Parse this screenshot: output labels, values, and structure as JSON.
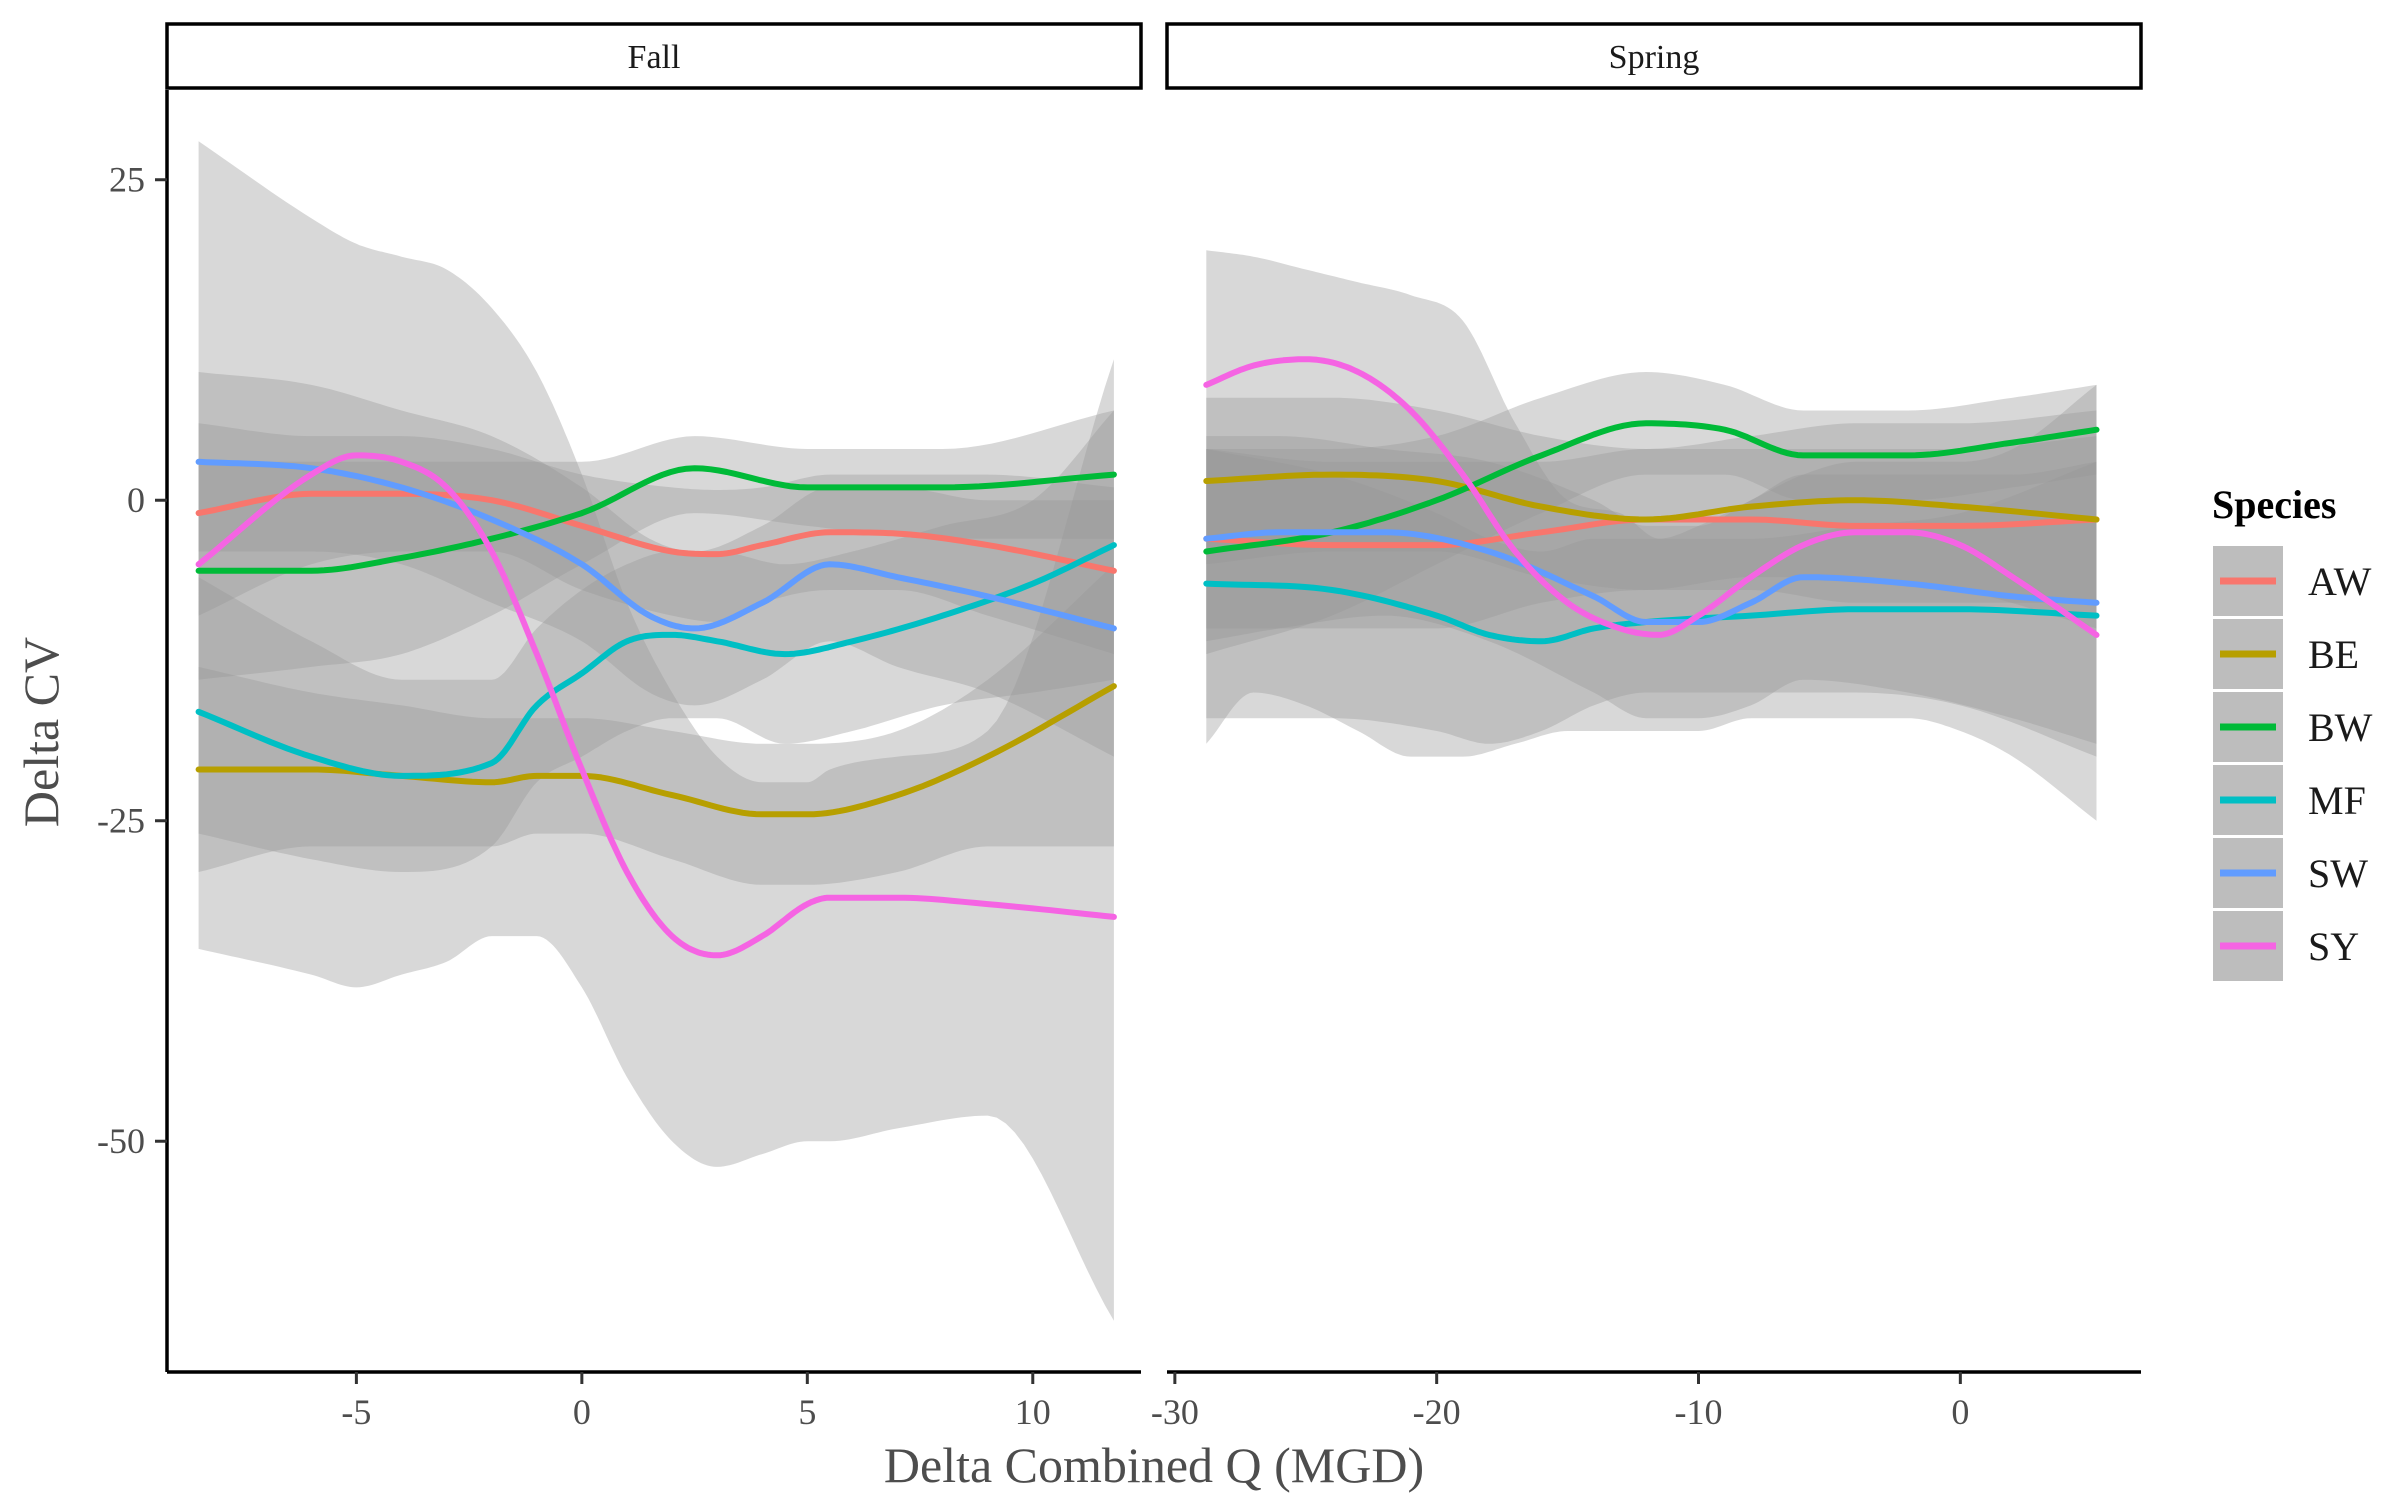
{
  "chart_data": {
    "type": "line",
    "subtype": "smoothed trend lines with confidence ribbons, faceted",
    "xlabel": "Delta Combined Q (MGD)",
    "ylabel": "Delta CV",
    "ylim": [
      -68,
      32
    ],
    "y_ticks": [
      25,
      0,
      -25,
      -50
    ],
    "grid": false,
    "legend": {
      "title": "Species",
      "position": "right",
      "entries": [
        "AW",
        "BE",
        "BW",
        "MF",
        "SW",
        "SY"
      ]
    },
    "colors": {
      "AW": "#F8766D",
      "BE": "#B79F00",
      "BW": "#00BA38",
      "MF": "#00BFC4",
      "SW": "#619CFF",
      "SY": "#F564E3",
      "ribbon": "#999999",
      "legend_key_bg": "#BDBDBD"
    },
    "panels": [
      {
        "label": "Fall",
        "xlim": [
          -9.2,
          12.4
        ],
        "x_ticks": [
          -5,
          0,
          5,
          10
        ],
        "series": [
          {
            "name": "AW",
            "x": [
              -8.5,
              -6,
              -4,
              -2,
              0,
              2,
              3,
              4,
              5.5,
              7,
              9,
              11.8
            ],
            "y": [
              -1,
              0.5,
              0.5,
              0,
              -2,
              -4,
              -4.2,
              -3.5,
              -2.5,
              -2.6,
              -3.5,
              -5.5
            ],
            "ci_upper": [
              6,
              5,
              5,
              4,
              2,
              1,
              0.8,
              1,
              2,
              2,
              2,
              1
            ],
            "ci_lower": [
              -9,
              -5,
              -4,
              -4,
              -7,
              -9,
              -9.5,
              -8,
              -7,
              -7,
              -9,
              -12
            ]
          },
          {
            "name": "BE",
            "x": [
              -8.5,
              -6,
              -4,
              -2,
              -1,
              0,
              2,
              4,
              5,
              7,
              9,
              11.8
            ],
            "y": [
              -21,
              -21,
              -21.5,
              -22,
              -21.5,
              -21.5,
              -23,
              -24.5,
              -24.5,
              -23,
              -20,
              -14.5
            ],
            "ci_upper": [
              -13,
              -15,
              -16,
              -17,
              -17,
              -17,
              -18,
              -19,
              -19,
              -18,
              -14,
              -5
            ],
            "ci_lower": [
              -29,
              -27,
              -27,
              -27,
              -26,
              -26,
              -28,
              -30,
              -30,
              -29,
              -27,
              -27
            ]
          },
          {
            "name": "BW",
            "x": [
              -8.5,
              -6,
              -4,
              -2,
              0,
              2.5,
              5,
              8,
              11.8
            ],
            "y": [
              -5.5,
              -5.5,
              -4.5,
              -3,
              -1,
              2.5,
              1,
              1,
              2
            ],
            "ci_upper": [
              3,
              3,
              3,
              3,
              3,
              5,
              4,
              4,
              7
            ],
            "ci_lower": [
              -14,
              -13,
              -12,
              -9,
              -5,
              -1,
              -2,
              -3,
              -3
            ]
          },
          {
            "name": "MF",
            "x": [
              -8.5,
              -6,
              -4,
              -2,
              -1,
              0,
              1,
              2,
              3,
              4.5,
              6,
              8,
              10,
              11.8
            ],
            "y": [
              -16.5,
              -20,
              -21.5,
              -20.5,
              -16,
              -13.5,
              -11,
              -10.5,
              -11,
              -12,
              -11,
              -9,
              -6.5,
              -3.5
            ],
            "ci_upper": [
              -6,
              -11,
              -14,
              -14,
              -10,
              -7,
              -5,
              -4,
              -4,
              -5,
              -4,
              -2,
              0,
              7
            ],
            "ci_lower": [
              -26,
              -28,
              -29,
              -27,
              -22,
              -20,
              -18,
              -17,
              -17,
              -19,
              -18,
              -16,
              -15,
              -14
            ]
          },
          {
            "name": "SW",
            "x": [
              -8.5,
              -6,
              -4,
              -2,
              0,
              1.5,
              2.5,
              4,
              5.5,
              7,
              9,
              11.8
            ],
            "y": [
              3,
              2.5,
              1,
              -1.5,
              -5,
              -9,
              -10,
              -8,
              -5,
              -6,
              -7.5,
              -10
            ],
            "ci_upper": [
              10,
              9,
              7,
              5,
              1,
              -3,
              -4,
              -2,
              1,
              1,
              0,
              0
            ],
            "ci_lower": [
              -4,
              -4,
              -5,
              -8,
              -11,
              -15,
              -16,
              -14,
              -11,
              -13,
              -15,
              -20
            ]
          },
          {
            "name": "SY",
            "x": [
              -8.5,
              -6,
              -5,
              -4,
              -3,
              -2,
              -1,
              0,
              1,
              2,
              3,
              4,
              5,
              5.5,
              7,
              9,
              11.8
            ],
            "y": [
              -5,
              2,
              3.5,
              3,
              1,
              -4,
              -12,
              -21,
              -29,
              -34,
              -35.5,
              -34,
              -31.5,
              -31,
              -31,
              -31.5,
              -32.5
            ],
            "ci_upper": [
              28,
              22,
              20,
              19,
              18,
              15,
              10,
              2,
              -8,
              -15,
              -20,
              -22,
              -22,
              -21,
              -20,
              -18,
              11
            ],
            "ci_lower": [
              -35,
              -37,
              -38,
              -37,
              -36,
              -34,
              -34,
              -38,
              -45,
              -50,
              -52,
              -51,
              -50,
              -50,
              -49,
              -48,
              -64
            ]
          }
        ]
      },
      {
        "label": "Spring",
        "xlim": [
          -30.3,
          6.9
        ],
        "x_ticks": [
          -30,
          -20,
          -10,
          0
        ],
        "series": [
          {
            "name": "AW",
            "x": [
              -28.8,
              -24,
              -20,
              -16,
              -12,
              -8,
              -4,
              0,
              5.2
            ],
            "y": [
              -3,
              -3.5,
              -3.5,
              -2.5,
              -1.5,
              -1.5,
              -2,
              -2,
              -1.5
            ],
            "ci_upper": [
              4,
              3,
              3,
              3,
              4,
              4,
              4,
              4,
              5
            ],
            "ci_lower": [
              -10,
              -10,
              -10,
              -8,
              -7,
              -7,
              -8,
              -8,
              -8
            ]
          },
          {
            "name": "BE",
            "x": [
              -28.8,
              -24,
              -20,
              -16,
              -12,
              -8,
              -4,
              0,
              5.2
            ],
            "y": [
              1.5,
              2,
              1.5,
              -0.5,
              -1.5,
              -0.5,
              0,
              -0.5,
              -1.5
            ],
            "ci_upper": [
              8,
              8,
              7,
              5,
              4,
              5,
              6,
              6,
              7
            ],
            "ci_lower": [
              -5,
              -4,
              -4,
              -6,
              -7,
              -6,
              -6,
              -7,
              -10
            ]
          },
          {
            "name": "BW",
            "x": [
              -28.8,
              -24,
              -20,
              -16,
              -12,
              -9,
              -6,
              -2,
              2,
              5.2
            ],
            "y": [
              -4,
              -2.5,
              0,
              3.5,
              6,
              5.5,
              3.5,
              3.5,
              4.5,
              5.5
            ],
            "ci_upper": [
              4,
              4,
              5,
              8,
              10,
              9,
              7,
              7,
              8,
              9
            ],
            "ci_lower": [
              -12,
              -9,
              -5,
              -1,
              2,
              2,
              0,
              0,
              1,
              2
            ]
          },
          {
            "name": "MF",
            "x": [
              -28.8,
              -24,
              -20,
              -18,
              -16,
              -14,
              -12,
              -8,
              -4,
              0,
              5.2
            ],
            "y": [
              -6.5,
              -7,
              -9,
              -10.5,
              -11,
              -10,
              -9.5,
              -9,
              -8.5,
              -8.5,
              -9
            ],
            "ci_upper": [
              4,
              2,
              -1,
              -3,
              -4,
              -3,
              -3,
              -3,
              -2,
              -1,
              3
            ],
            "ci_lower": [
              -17,
              -17,
              -18,
              -19,
              -18,
              -16,
              -15,
              -15,
              -15,
              -16,
              -20
            ]
          },
          {
            "name": "SW",
            "x": [
              -28.8,
              -26,
              -22,
              -18,
              -14,
              -12,
              -10,
              -8,
              -6,
              -2,
              2,
              5.2
            ],
            "y": [
              -3,
              -2.5,
              -2.5,
              -4,
              -7.5,
              -9.5,
              -9.5,
              -8,
              -6,
              -6.5,
              -7.5,
              -8
            ],
            "ci_upper": [
              5,
              5,
              4,
              3,
              0,
              -2,
              -2,
              0,
              2,
              2,
              2,
              3
            ],
            "ci_lower": [
              -11,
              -10,
              -9,
              -11,
              -15,
              -17,
              -17,
              -16,
              -14,
              -15,
              -17,
              -19
            ]
          },
          {
            "name": "SY",
            "x": [
              -28.8,
              -27,
              -25,
              -23,
              -21,
              -19,
              -17,
              -15,
              -13,
              -11.5,
              -10,
              -8,
              -6,
              -4,
              -2,
              0,
              2,
              5.2
            ],
            "y": [
              9,
              10.5,
              11,
              10,
              7,
              2,
              -4,
              -8,
              -10,
              -10.5,
              -9,
              -6,
              -3.5,
              -2.5,
              -2.5,
              -3.5,
              -6,
              -10.5
            ],
            "ci_upper": [
              19.5,
              19,
              18,
              17,
              16,
              14,
              6,
              0,
              -1,
              -3,
              -2,
              0,
              2,
              3,
              3,
              3,
              4,
              9
            ],
            "ci_lower": [
              -19,
              -15,
              -16,
              -18,
              -20,
              -20,
              -19,
              -18,
              -18,
              -18,
              -18,
              -17,
              -17,
              -17,
              -17,
              -18,
              -20,
              -25
            ]
          }
        ]
      }
    ]
  }
}
